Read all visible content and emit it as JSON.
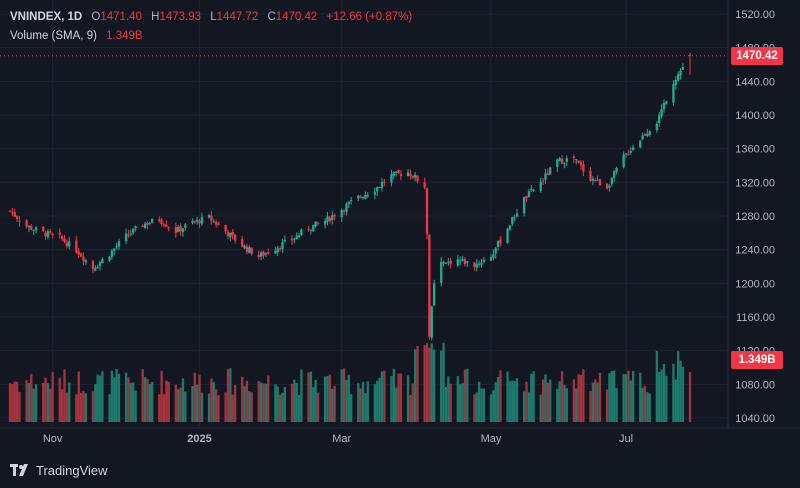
{
  "header": {
    "symbol": "VNINDEX, 1D",
    "open_label": "O",
    "open": "1471.40",
    "high_label": "H",
    "high": "1473.93",
    "low_label": "L",
    "low": "1447.72",
    "close_label": "C",
    "close": "1470.42",
    "change": "+12.66 (+0.87%)"
  },
  "volume_legend": {
    "label": "Volume (SMA, 9)",
    "value": "1.349B"
  },
  "price_tags": {
    "last_price": "1470.42",
    "last_volume": "1.349B"
  },
  "footer": {
    "brand": "TradingView"
  },
  "colors": {
    "up": "#22ab94",
    "down": "#f23645",
    "vol_up": "#1e7a6c",
    "vol_down": "#a5343f",
    "background": "#131722",
    "grid": "#1f2330"
  },
  "chart_data": {
    "type": "candlestick",
    "title": "VNINDEX, 1D",
    "y_axis": {
      "ticks": [
        1040,
        1080,
        1120,
        1160,
        1200,
        1240,
        1280,
        1320,
        1360,
        1400,
        1440,
        1480,
        1520
      ],
      "labels": [
        "1040.00",
        "1080.00",
        "1120.00",
        "1160.00",
        "1200.00",
        "1240.00",
        "1280.00",
        "1320.00",
        "1360.00",
        "1400.00",
        "1440.00",
        "1480.00",
        "1520.00"
      ],
      "ylim": [
        1030,
        1522
      ]
    },
    "x_axis": {
      "labels": [
        "Nov",
        "2025",
        "Mar",
        "May",
        "Jul"
      ],
      "label_dates": [
        "2024-11-01",
        "2025-01-02",
        "2025-03-03",
        "2025-05-05",
        "2025-07-01"
      ]
    },
    "series_points": [
      [
        "2024-10-14",
        1286
      ],
      [
        "2024-10-21",
        1268
      ],
      [
        "2024-10-28",
        1260
      ],
      [
        "2024-11-04",
        1254
      ],
      [
        "2024-11-11",
        1240
      ],
      [
        "2024-11-18",
        1218
      ],
      [
        "2024-11-25",
        1235
      ],
      [
        "2024-12-02",
        1256
      ],
      [
        "2024-12-09",
        1270
      ],
      [
        "2024-12-16",
        1276
      ],
      [
        "2024-12-23",
        1262
      ],
      [
        "2024-12-30",
        1272
      ],
      [
        "2025-01-06",
        1278
      ],
      [
        "2025-01-13",
        1262
      ],
      [
        "2025-01-20",
        1245
      ],
      [
        "2025-01-27",
        1232
      ],
      [
        "2025-02-03",
        1242
      ],
      [
        "2025-02-10",
        1252
      ],
      [
        "2025-02-17",
        1266
      ],
      [
        "2025-02-24",
        1274
      ],
      [
        "2025-03-03",
        1288
      ],
      [
        "2025-03-10",
        1302
      ],
      [
        "2025-03-17",
        1312
      ],
      [
        "2025-03-24",
        1328
      ],
      [
        "2025-03-31",
        1332
      ],
      [
        "2025-04-07",
        1318
      ],
      [
        "2025-04-08",
        1255
      ],
      [
        "2025-04-09",
        1140
      ],
      [
        "2025-04-11",
        1198
      ],
      [
        "2025-04-14",
        1222
      ],
      [
        "2025-04-21",
        1228
      ],
      [
        "2025-04-28",
        1222
      ],
      [
        "2025-05-05",
        1232
      ],
      [
        "2025-05-12",
        1266
      ],
      [
        "2025-05-19",
        1300
      ],
      [
        "2025-05-26",
        1320
      ],
      [
        "2025-06-02",
        1345
      ],
      [
        "2025-06-09",
        1348
      ],
      [
        "2025-06-16",
        1325
      ],
      [
        "2025-06-23",
        1315
      ],
      [
        "2025-06-30",
        1350
      ],
      [
        "2025-07-07",
        1372
      ],
      [
        "2025-07-14",
        1392
      ],
      [
        "2025-07-21",
        1440
      ],
      [
        "2025-07-28",
        1470
      ]
    ],
    "volume_axis": {
      "ylim": [
        0,
        0.4
      ]
    },
    "last": {
      "open": 1471.4,
      "high": 1473.93,
      "low": 1447.72,
      "close": 1470.42,
      "volume_billion": 1.349
    }
  }
}
